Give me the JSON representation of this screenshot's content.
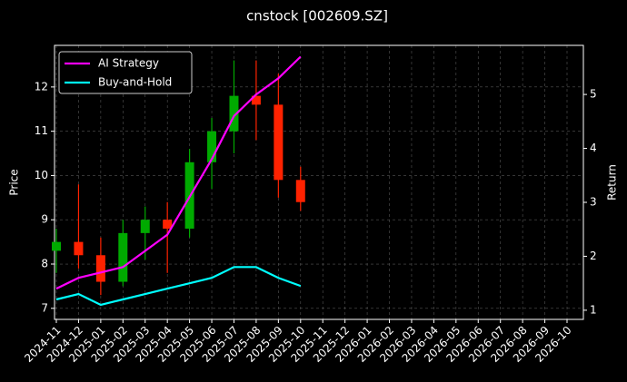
{
  "chart_data": {
    "type": "candlestick",
    "title": "cnstock [002609.SZ]",
    "ylabel": "Price",
    "y2label": "Return",
    "x": [
      "2024-11",
      "2024-12",
      "2025-01",
      "2025-02",
      "2025-03",
      "2025-04",
      "2025-05",
      "2025-06",
      "2025-07",
      "2025-08",
      "2025-09",
      "2025-10"
    ],
    "open": [
      8.3,
      8.5,
      8.2,
      7.6,
      8.7,
      9.0,
      8.8,
      10.3,
      11.0,
      11.8,
      11.6,
      9.9
    ],
    "high": [
      8.8,
      9.8,
      8.6,
      9.0,
      9.3,
      9.4,
      10.6,
      11.3,
      12.6,
      12.6,
      12.3,
      10.2
    ],
    "low": [
      7.8,
      7.9,
      7.3,
      7.5,
      8.1,
      7.8,
      8.6,
      9.7,
      10.5,
      10.8,
      9.5,
      9.2
    ],
    "close": [
      8.5,
      8.2,
      7.6,
      8.7,
      9.0,
      8.8,
      10.3,
      11.0,
      11.8,
      11.6,
      9.9,
      9.4
    ],
    "up_color": "#00aa00",
    "down_color": "#ff2200",
    "series": [
      {
        "name": "AI Strategy",
        "color": "#ff00ff",
        "axis": "y2",
        "values": [
          1.4,
          1.6,
          1.7,
          1.8,
          2.1,
          2.4,
          3.1,
          3.8,
          4.6,
          5.0,
          5.3,
          5.7
        ]
      },
      {
        "name": "Buy-and-Hold",
        "color": "#00ffff",
        "axis": "y2",
        "values": [
          1.2,
          1.3,
          1.1,
          1.2,
          1.3,
          1.4,
          1.5,
          1.6,
          1.8,
          1.8,
          1.6,
          1.45
        ]
      }
    ],
    "xlim": [
      "2024-11",
      "2026-10"
    ],
    "xticks": [
      "2024-11",
      "2024-12",
      "2025-01",
      "2025-02",
      "2025-03",
      "2025-04",
      "2025-05",
      "2025-06",
      "2025-07",
      "2025-08",
      "2025-09",
      "2025-10",
      "2025-11",
      "2025-12",
      "2026-01",
      "2026-02",
      "2026-03",
      "2026-04",
      "2026-05",
      "2026-06",
      "2026-07",
      "2026-08",
      "2026-09",
      "2026-10"
    ],
    "ylim": [
      6.75,
      12.94
    ],
    "yticks": [
      7,
      8,
      9,
      10,
      11,
      12
    ],
    "y2lim": [
      0.83,
      5.91
    ],
    "y2ticks": [
      1,
      2,
      3,
      4,
      5
    ],
    "grid": true,
    "legend": "upper left"
  }
}
